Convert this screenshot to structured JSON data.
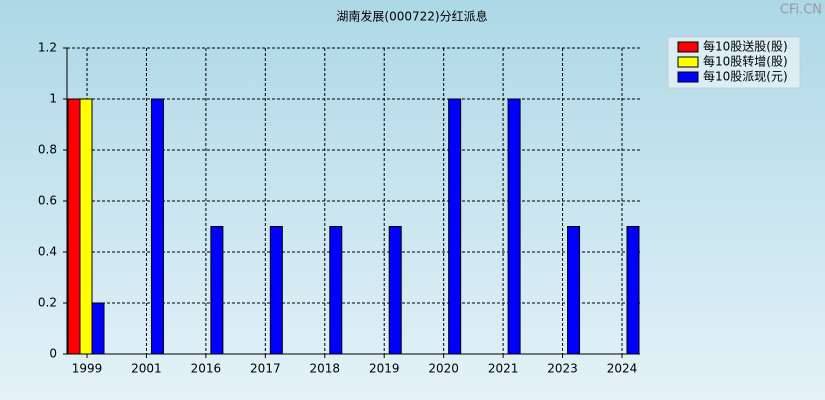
{
  "chart_data": {
    "type": "bar",
    "title": "湖南发展(000722)分红派息",
    "watermark": "CFi.CN",
    "categories": [
      "1999",
      "2001",
      "2016",
      "2017",
      "2018",
      "2019",
      "2020",
      "2021",
      "2023",
      "2024"
    ],
    "series": [
      {
        "name": "每10股送股(股)",
        "color": "#ff0000",
        "values": [
          1,
          null,
          null,
          null,
          null,
          null,
          null,
          null,
          null,
          null
        ]
      },
      {
        "name": "每10股转增(股)",
        "color": "#ffff00",
        "values": [
          1,
          null,
          null,
          null,
          null,
          null,
          null,
          null,
          null,
          null
        ]
      },
      {
        "name": "每10股派现(元)",
        "color": "#0000ff",
        "values": [
          0.2,
          1,
          0.5,
          0.5,
          0.5,
          0.5,
          1,
          1,
          0.5,
          0.5
        ]
      }
    ],
    "ylim": [
      0,
      1.2
    ],
    "yticks": [
      0,
      0.2,
      0.4,
      0.6,
      0.8,
      1,
      1.2
    ],
    "grid": true,
    "legend": "top-right"
  }
}
